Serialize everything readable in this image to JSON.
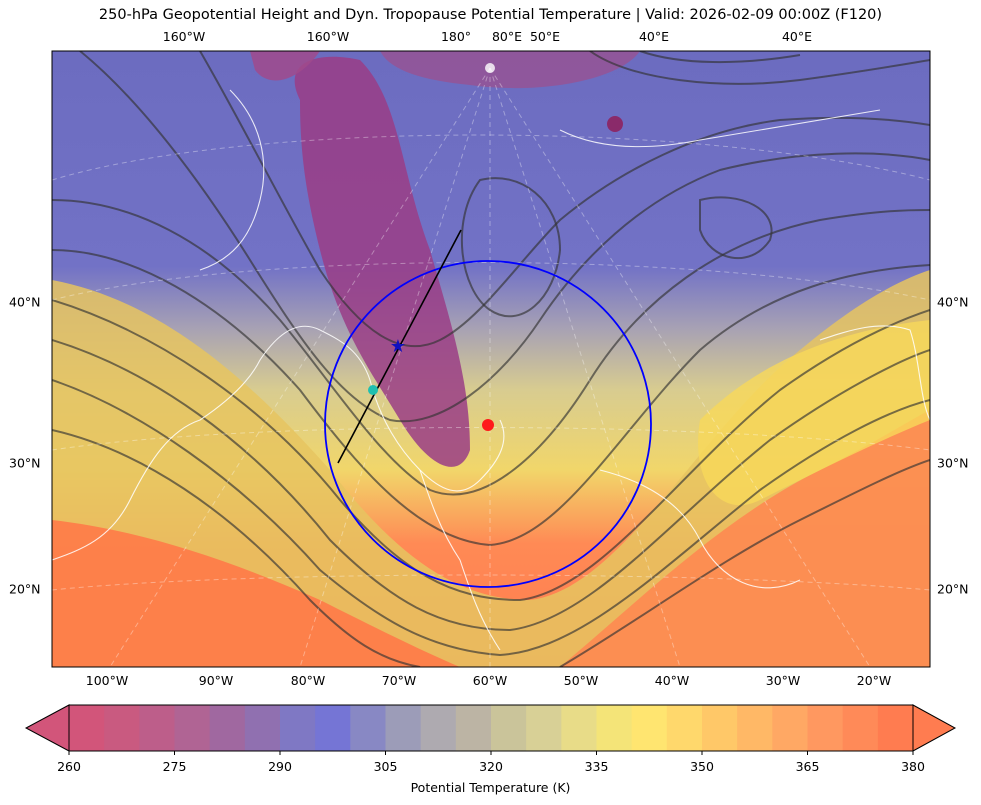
{
  "title": "250-hPa Geopotential Height and Dyn. Tropopause Potential Temperature   |  Valid: 2026-02-09 00:00Z (F120)",
  "map": {
    "top_lon_labels": [
      "160°W",
      "160°W",
      "180°",
      "80°E",
      "50°E",
      "40°E",
      "40°E"
    ],
    "bottom_lon_labels": [
      "100°W",
      "90°W",
      "80°W",
      "70°W",
      "60°W",
      "50°W",
      "40°W",
      "30°W",
      "20°W"
    ],
    "left_lat_labels": [
      "40°N",
      "30°N",
      "20°N"
    ],
    "right_lat_labels": [
      "40°N",
      "30°N",
      "20°N"
    ],
    "markers": [
      {
        "name": "red-dot",
        "color": "#ff1a1a"
      },
      {
        "name": "blue-star",
        "color": "#1010c0"
      },
      {
        "name": "teal-dot",
        "color": "#20c0b0"
      }
    ],
    "circle_color": "#0000ff",
    "line_color": "#000000"
  },
  "colorbar": {
    "label": "Potential Temperature (K)",
    "ticks": [
      "260",
      "275",
      "290",
      "305",
      "320",
      "335",
      "350",
      "365",
      "380"
    ],
    "colors": [
      "#d2557a",
      "#c95a80",
      "#bd5e8a",
      "#b06494",
      "#a068a0",
      "#9070b0",
      "#7f78c4",
      "#7575d5",
      "#8888c4",
      "#9c9cb8",
      "#aeaab0",
      "#bcb4a4",
      "#cac49a",
      "#d8d096",
      "#e8dc88",
      "#f4e478",
      "#ffe570",
      "#ffd86c",
      "#ffc868",
      "#ffb866",
      "#ffa864",
      "#ff9860",
      "#ff8a58",
      "#ff7c50"
    ]
  }
}
